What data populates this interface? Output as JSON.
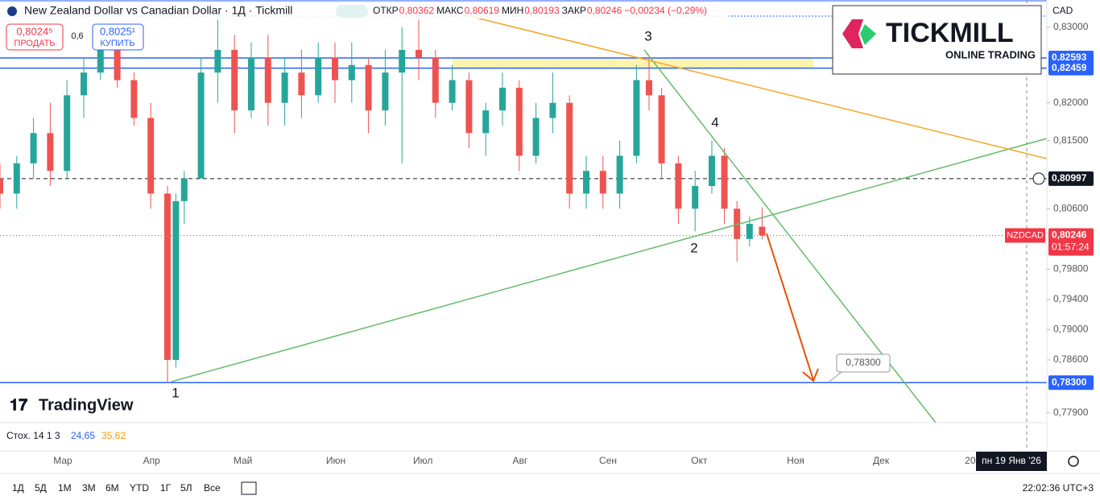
{
  "header": {
    "title": "New Zealand Dollar vs Canadian Dollar · 1Д · Tickmill",
    "ohlc": [
      {
        "label": "ОТКР",
        "value": "0,80362"
      },
      {
        "label": "МАКС",
        "value": "0,80619"
      },
      {
        "label": "МИН",
        "value": "0,80193"
      },
      {
        "label": "ЗАКР",
        "value": "0,80246"
      }
    ],
    "change": "−0,00234 (−0,29%)",
    "sell": {
      "price": "0,8024⁵",
      "label": "ПРОДАТЬ"
    },
    "spread": "0,6",
    "buy": {
      "price": "0,8025¹",
      "label": "КУПИТЬ"
    },
    "currency": "CAD"
  },
  "logo": {
    "brand": "TICKMILL",
    "tagline": "ONLINE TRADING",
    "platform": "TradingView"
  },
  "chart_data": {
    "type": "candlestick",
    "up_color": "#26a69a",
    "down_color": "#ef5350",
    "x": [
      0,
      4,
      8,
      12,
      16,
      20,
      24,
      28,
      32,
      36,
      40,
      42,
      44,
      48,
      52,
      56,
      60,
      64,
      68,
      72,
      76,
      80,
      84,
      88,
      92,
      96,
      100,
      104,
      108,
      112,
      116,
      120,
      124,
      128,
      132,
      136,
      140,
      144,
      148,
      152,
      155,
      158,
      162,
      166,
      170,
      173,
      176,
      179,
      182
    ],
    "open": [
      0.81,
      0.808,
      0.812,
      0.816,
      0.811,
      0.821,
      0.824,
      0.827,
      0.823,
      0.818,
      0.808,
      0.786,
      0.807,
      0.81,
      0.824,
      0.827,
      0.819,
      0.826,
      0.82,
      0.824,
      0.821,
      0.826,
      0.823,
      0.825,
      0.819,
      0.824,
      0.827,
      0.826,
      0.82,
      0.823,
      0.816,
      0.819,
      0.822,
      0.813,
      0.818,
      0.82,
      0.808,
      0.811,
      0.808,
      0.813,
      0.823,
      0.821,
      0.812,
      0.806,
      0.809,
      0.813,
      0.806,
      0.802,
      0.80362
    ],
    "high": [
      0.812,
      0.813,
      0.818,
      0.82,
      0.823,
      0.826,
      0.829,
      0.829,
      0.824,
      0.82,
      0.809,
      0.808,
      0.811,
      0.826,
      0.831,
      0.829,
      0.828,
      0.829,
      0.826,
      0.827,
      0.828,
      0.828,
      0.828,
      0.826,
      0.827,
      0.83,
      0.831,
      0.827,
      0.825,
      0.824,
      0.82,
      0.824,
      0.823,
      0.82,
      0.824,
      0.821,
      0.813,
      0.813,
      0.815,
      0.825,
      0.826,
      0.822,
      0.813,
      0.811,
      0.815,
      0.814,
      0.807,
      0.805,
      0.80619
    ],
    "low": [
      0.806,
      0.806,
      0.81,
      0.809,
      0.81,
      0.818,
      0.823,
      0.822,
      0.817,
      0.806,
      0.783,
      0.785,
      0.804,
      0.81,
      0.82,
      0.816,
      0.818,
      0.817,
      0.817,
      0.818,
      0.82,
      0.82,
      0.82,
      0.816,
      0.817,
      0.812,
      0.823,
      0.818,
      0.819,
      0.814,
      0.813,
      0.817,
      0.811,
      0.812,
      0.816,
      0.806,
      0.806,
      0.806,
      0.806,
      0.812,
      0.819,
      0.81,
      0.804,
      0.803,
      0.808,
      0.804,
      0.799,
      0.801,
      0.80193
    ],
    "close": [
      0.808,
      0.812,
      0.816,
      0.811,
      0.821,
      0.824,
      0.827,
      0.823,
      0.818,
      0.808,
      0.786,
      0.807,
      0.81,
      0.824,
      0.827,
      0.819,
      0.826,
      0.82,
      0.824,
      0.821,
      0.826,
      0.823,
      0.825,
      0.819,
      0.824,
      0.827,
      0.826,
      0.82,
      0.823,
      0.816,
      0.819,
      0.822,
      0.813,
      0.818,
      0.82,
      0.808,
      0.811,
      0.808,
      0.813,
      0.823,
      0.821,
      0.812,
      0.806,
      0.809,
      0.813,
      0.806,
      0.802,
      0.804,
      0.80246
    ],
    "xlim": [
      0,
      250
    ],
    "xticks": [
      {
        "value": 15,
        "label": "Мар"
      },
      {
        "value": 36.2,
        "label": "Апр"
      },
      {
        "value": 58,
        "label": "Май"
      },
      {
        "value": 80.2,
        "label": "Июн"
      },
      {
        "value": 101,
        "label": "Июл"
      },
      {
        "value": 124.2,
        "label": "Авг"
      },
      {
        "value": 145.2,
        "label": "Сен"
      },
      {
        "value": 167,
        "label": "Окт"
      },
      {
        "value": 190,
        "label": "Ноя"
      },
      {
        "value": 210.4,
        "label": "Дек"
      },
      {
        "value": 231.7,
        "label": "20"
      }
    ],
    "ylim": [
      0.7777,
      0.8336
    ],
    "yticks": [
      {
        "value": 0.83,
        "label": "0,83000"
      },
      {
        "value": 0.82,
        "label": "0,82000"
      },
      {
        "value": 0.815,
        "label": "0,81500"
      },
      {
        "value": 0.806,
        "label": "0,80600"
      },
      {
        "value": 0.798,
        "label": "0,79800"
      },
      {
        "value": 0.794,
        "label": "0,79400"
      },
      {
        "value": 0.79,
        "label": "0,79000"
      },
      {
        "value": 0.786,
        "label": "0,78600"
      },
      {
        "value": 0.779,
        "label": "0,77900"
      }
    ],
    "price_lines": [
      {
        "value": 0.82593,
        "label": "0,82593",
        "color": "#2962ff",
        "style": "solid"
      },
      {
        "value": 0.82459,
        "label": "0,82459",
        "color": "#2962ff",
        "style": "solid"
      },
      {
        "value": 0.80997,
        "label": "0,80997",
        "color": "#131722",
        "style": "dashed"
      },
      {
        "value": 0.783,
        "label": "0,78300",
        "color": "#2962ff",
        "style": "solid"
      },
      {
        "value": 0.80246,
        "label": "0,80246",
        "color": "#f23645",
        "style": "dotted"
      }
    ],
    "symbol": "NZDCAD",
    "countdown": "01:57:24",
    "crosshair_date": "пн 19 Янв '26",
    "target_label": "0,78300",
    "annotations": [
      "1",
      "2",
      "3",
      "4"
    ]
  },
  "stochastic": {
    "label": "Стох. 14 1 3",
    "k": "24,65",
    "d": "35,62"
  },
  "toolbar": {
    "ranges": [
      "1Д",
      "5Д",
      "1М",
      "3М",
      "6М",
      "YTD",
      "1Г",
      "5Л",
      "Все"
    ],
    "clock": "22:02:36 UTC+3"
  }
}
